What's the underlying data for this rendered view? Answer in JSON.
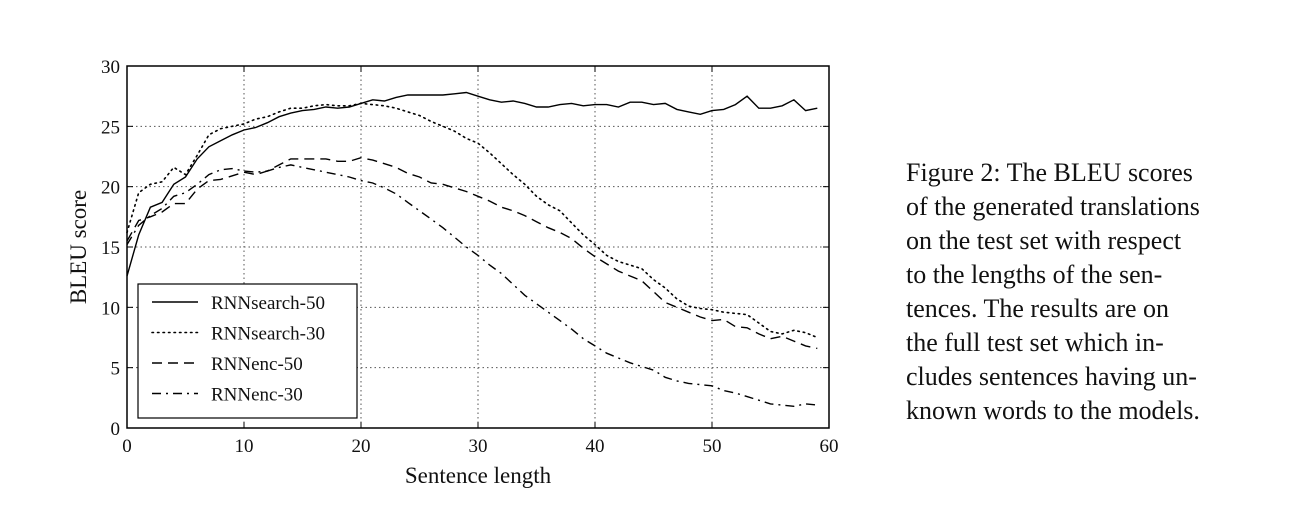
{
  "caption": {
    "lines": [
      "Figure 2:  The BLEU scores",
      "of the generated translations",
      "on the test set with respect",
      "to the lengths of the sen-",
      "tences.  The results are on",
      "the full test set which in-",
      "cludes sentences having un-",
      "known words to the models."
    ]
  },
  "chart_data": {
    "type": "line",
    "xlabel": "Sentence length",
    "ylabel": "BLEU score",
    "xlim": [
      0,
      60
    ],
    "ylim": [
      0,
      30
    ],
    "xticks": [
      "0",
      "10",
      "20",
      "30",
      "40",
      "50",
      "60"
    ],
    "yticks": [
      "0",
      "5",
      "10",
      "15",
      "20",
      "25",
      "30"
    ],
    "grid": true,
    "legend_position": "lower-left",
    "series": [
      {
        "name": "RNNsearch-50",
        "linestyle": "solid",
        "x": [
          0,
          1,
          2,
          3,
          4,
          5,
          6,
          7,
          8,
          9,
          10,
          11,
          12,
          13,
          14,
          15,
          16,
          17,
          18,
          19,
          20,
          21,
          22,
          23,
          24,
          25,
          26,
          27,
          28,
          29,
          30,
          31,
          32,
          33,
          34,
          35,
          36,
          37,
          38,
          39,
          40,
          41,
          42,
          43,
          44,
          45,
          46,
          47,
          48,
          49,
          50,
          51,
          52,
          53,
          54,
          55,
          56,
          57,
          58,
          59
        ],
        "values": [
          12.6,
          16.0,
          18.3,
          18.7,
          20.2,
          20.8,
          22.3,
          23.3,
          23.8,
          24.3,
          24.7,
          24.9,
          25.3,
          25.8,
          26.1,
          26.3,
          26.4,
          26.6,
          26.5,
          26.6,
          26.9,
          27.2,
          27.1,
          27.4,
          27.6,
          27.6,
          27.6,
          27.6,
          27.7,
          27.8,
          27.5,
          27.2,
          27.0,
          27.1,
          26.9,
          26.6,
          26.6,
          26.8,
          26.9,
          26.7,
          26.8,
          26.8,
          26.6,
          27.0,
          27.0,
          26.8,
          26.9,
          26.4,
          26.2,
          26.0,
          26.3,
          26.4,
          26.8,
          27.5,
          26.5,
          26.5,
          26.7,
          27.2,
          26.3,
          26.5
        ]
      },
      {
        "name": "RNNsearch-30",
        "linestyle": "dotted",
        "x": [
          0,
          1,
          2,
          3,
          4,
          5,
          6,
          7,
          8,
          9,
          10,
          11,
          12,
          13,
          14,
          15,
          16,
          17,
          18,
          19,
          20,
          21,
          22,
          23,
          24,
          25,
          26,
          27,
          28,
          29,
          30,
          31,
          32,
          33,
          34,
          35,
          36,
          37,
          38,
          39,
          40,
          41,
          42,
          43,
          44,
          45,
          46,
          47,
          48,
          49,
          50,
          51,
          52,
          53,
          54,
          55,
          56,
          57,
          58,
          59
        ],
        "values": [
          16.2,
          19.5,
          20.2,
          20.4,
          21.6,
          21.0,
          22.6,
          24.3,
          24.8,
          25.0,
          25.2,
          25.6,
          25.8,
          26.2,
          26.5,
          26.5,
          26.7,
          26.8,
          26.7,
          26.7,
          26.9,
          26.8,
          26.7,
          26.5,
          26.2,
          25.9,
          25.4,
          25.0,
          24.6,
          24.0,
          23.6,
          22.8,
          21.9,
          21.0,
          20.2,
          19.2,
          18.5,
          18.0,
          17.0,
          16.0,
          15.2,
          14.3,
          13.8,
          13.5,
          13.2,
          12.3,
          11.6,
          10.7,
          10.1,
          9.9,
          9.8,
          9.6,
          9.5,
          9.4,
          8.7,
          8.0,
          7.8,
          8.1,
          7.9,
          7.5
        ]
      },
      {
        "name": "RNNenc-50",
        "linestyle": "dashed",
        "x": [
          0,
          1,
          2,
          3,
          4,
          5,
          6,
          7,
          8,
          9,
          10,
          11,
          12,
          13,
          14,
          15,
          16,
          17,
          18,
          19,
          20,
          21,
          22,
          23,
          24,
          25,
          26,
          27,
          28,
          29,
          30,
          31,
          32,
          33,
          34,
          35,
          36,
          37,
          38,
          39,
          40,
          41,
          42,
          43,
          44,
          45,
          46,
          47,
          48,
          49,
          50,
          51,
          52,
          53,
          54,
          55,
          56,
          57,
          58,
          59
        ],
        "values": [
          15.5,
          17.2,
          17.5,
          17.9,
          18.6,
          18.6,
          19.8,
          20.5,
          20.6,
          20.9,
          21.2,
          21.0,
          21.3,
          21.8,
          22.3,
          22.3,
          22.3,
          22.3,
          22.1,
          22.1,
          22.4,
          22.2,
          21.9,
          21.6,
          21.1,
          20.8,
          20.3,
          20.2,
          19.9,
          19.6,
          19.2,
          18.8,
          18.3,
          18.0,
          17.6,
          17.1,
          16.6,
          16.2,
          15.7,
          14.9,
          14.2,
          13.6,
          13.0,
          12.6,
          12.2,
          11.3,
          10.4,
          10.0,
          9.6,
          9.2,
          8.9,
          9.0,
          8.4,
          8.3,
          7.8,
          7.4,
          7.6,
          7.2,
          6.8,
          6.6
        ]
      },
      {
        "name": "RNNenc-30",
        "linestyle": "dashdot",
        "x": [
          0,
          1,
          2,
          3,
          4,
          5,
          6,
          7,
          8,
          9,
          10,
          11,
          12,
          13,
          14,
          15,
          16,
          17,
          18,
          19,
          20,
          21,
          22,
          23,
          24,
          25,
          26,
          27,
          28,
          29,
          30,
          31,
          32,
          33,
          34,
          35,
          36,
          37,
          38,
          39,
          40,
          41,
          42,
          43,
          44,
          45,
          46,
          47,
          48,
          49,
          50,
          51,
          52,
          53,
          54,
          55,
          56,
          57,
          58,
          59
        ],
        "values": [
          15.2,
          16.8,
          17.6,
          18.2,
          19.2,
          19.5,
          20.2,
          21.0,
          21.4,
          21.5,
          21.3,
          21.2,
          21.3,
          21.6,
          21.8,
          21.6,
          21.4,
          21.2,
          21.0,
          20.8,
          20.5,
          20.3,
          19.9,
          19.4,
          18.7,
          18.0,
          17.3,
          16.6,
          15.8,
          15.0,
          14.3,
          13.5,
          12.8,
          11.9,
          11.0,
          10.3,
          9.6,
          8.9,
          8.2,
          7.4,
          6.8,
          6.2,
          5.8,
          5.4,
          5.1,
          4.8,
          4.2,
          3.9,
          3.7,
          3.6,
          3.5,
          3.1,
          2.9,
          2.6,
          2.3,
          2.0,
          1.9,
          1.8,
          2.0,
          1.9
        ]
      }
    ]
  }
}
